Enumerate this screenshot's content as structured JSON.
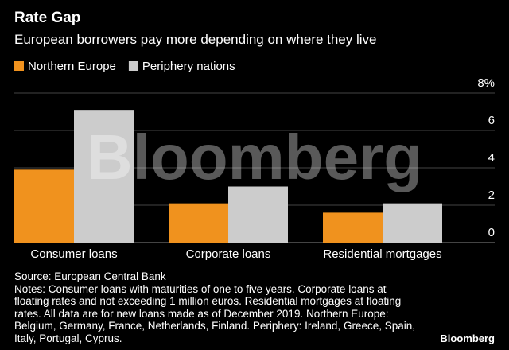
{
  "chart_data": {
    "type": "bar",
    "title": "Rate Gap",
    "subtitle": "European borrowers pay more depending on where they live",
    "categories": [
      "Consumer loans",
      "Corporate loans",
      "Residential mortgages"
    ],
    "series": [
      {
        "name": "Northern Europe",
        "color": "#f0921e",
        "values": [
          3.9,
          2.1,
          1.6
        ]
      },
      {
        "name": "Periphery nations",
        "color": "#cccccc",
        "values": [
          7.1,
          3.0,
          2.1
        ]
      }
    ],
    "ylim": [
      0,
      8
    ],
    "yticks": [
      0,
      2,
      4,
      6,
      {
        "value": 8,
        "label": "8%"
      }
    ],
    "grid": true,
    "source": "Source: European Central Bank",
    "notes": "Notes: Consumer loans with maturities of one to five years. Corporate loans at floating rates and not exceeding 1 million euros. Residential mortgages at floating rates. All data are for new loans made as of December 2019. Northern Europe: Belgium, Germany, France, Netherlands, Finland. Periphery: Ireland, Greece, Spain, Italy, Portugal, Cyprus.",
    "watermark": "Bloomberg",
    "logo": "Bloomberg"
  }
}
